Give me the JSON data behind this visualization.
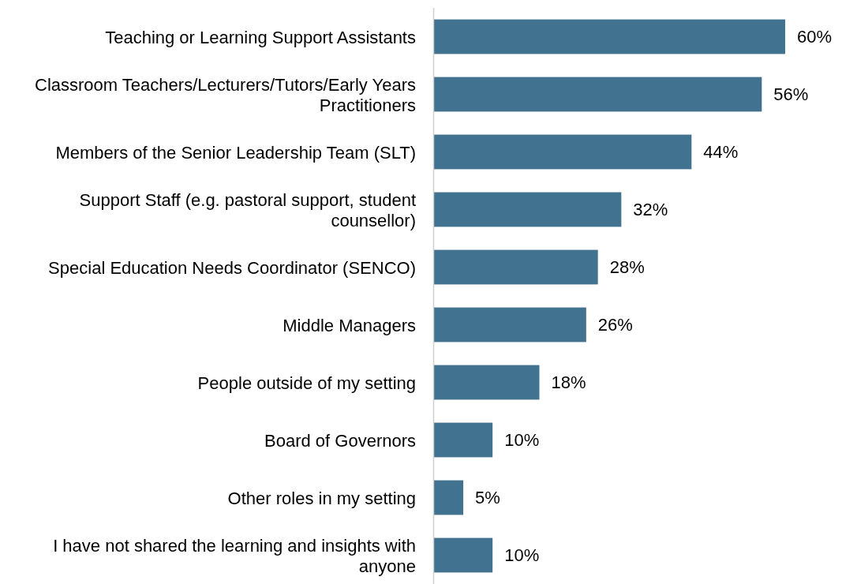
{
  "chart_data": {
    "type": "bar",
    "orientation": "horizontal",
    "relative": false,
    "categories": [
      "Teaching or Learning Support Assistants",
      "Classroom Teachers/Lecturers/Tutors/Early Years Practitioners",
      "Members of the Senior Leadership Team (SLT)",
      "Support Staff (e.g. pastoral support, student counsellor)",
      "Special Education Needs Coordinator (SENCO)",
      "Middle Managers",
      "People outside of my setting",
      "Board of Governors",
      "Other roles in my setting",
      "I have not shared the learning and insights with anyone"
    ],
    "values": [
      60,
      56,
      44,
      32,
      28,
      26,
      18,
      10,
      5,
      10
    ],
    "value_labels": [
      "60%",
      "56%",
      "44%",
      "32%",
      "28%",
      "26%",
      "18%",
      "10%",
      "5%",
      "10%"
    ],
    "color": "#41728f"
  }
}
